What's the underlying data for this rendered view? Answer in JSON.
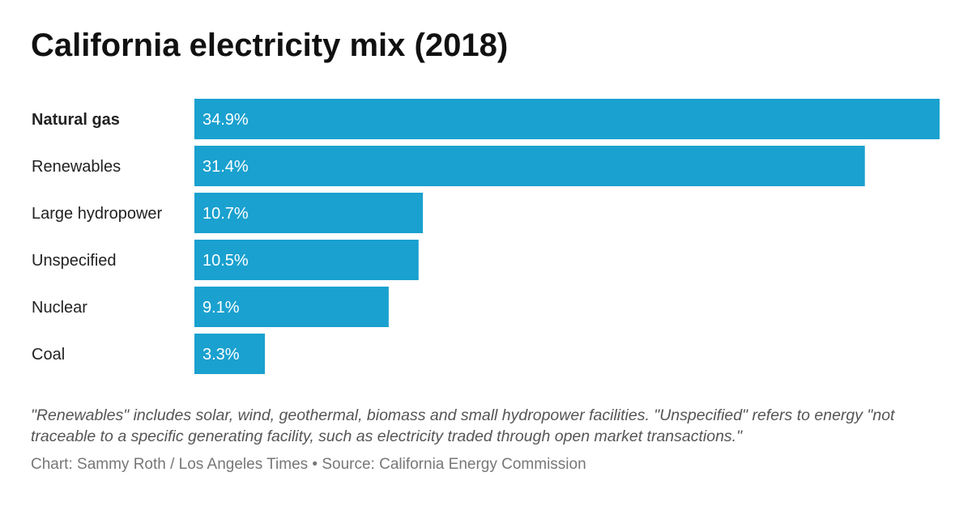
{
  "title": "California electricity mix (2018)",
  "note": "\"Renewables\" includes solar, wind, geothermal, biomass and small hydropower facilities. \"Unspecified\" refers to energy \"not traceable to a specific generating facility, such as electricity traded through open market transactions.\"",
  "credit": "Chart: Sammy Roth / Los Angeles Times • Source: California Energy Commission",
  "colors": {
    "bar": "#1aa1cf",
    "bar_label": "#ffffff",
    "category_label": "#222222"
  },
  "chart_data": {
    "type": "bar",
    "orientation": "horizontal",
    "title": "California electricity mix (2018)",
    "categories": [
      "Natural gas",
      "Renewables",
      "Large hydropower",
      "Unspecified",
      "Nuclear",
      "Coal"
    ],
    "values": [
      34.9,
      31.4,
      10.7,
      10.5,
      9.1,
      3.3
    ],
    "value_labels": [
      "34.9%",
      "31.4%",
      "10.7%",
      "10.5%",
      "9.1%",
      "3.3%"
    ],
    "bold_categories": [
      "Natural gas"
    ],
    "xlim": [
      0,
      34.9
    ],
    "grid": false,
    "legend": "none"
  }
}
